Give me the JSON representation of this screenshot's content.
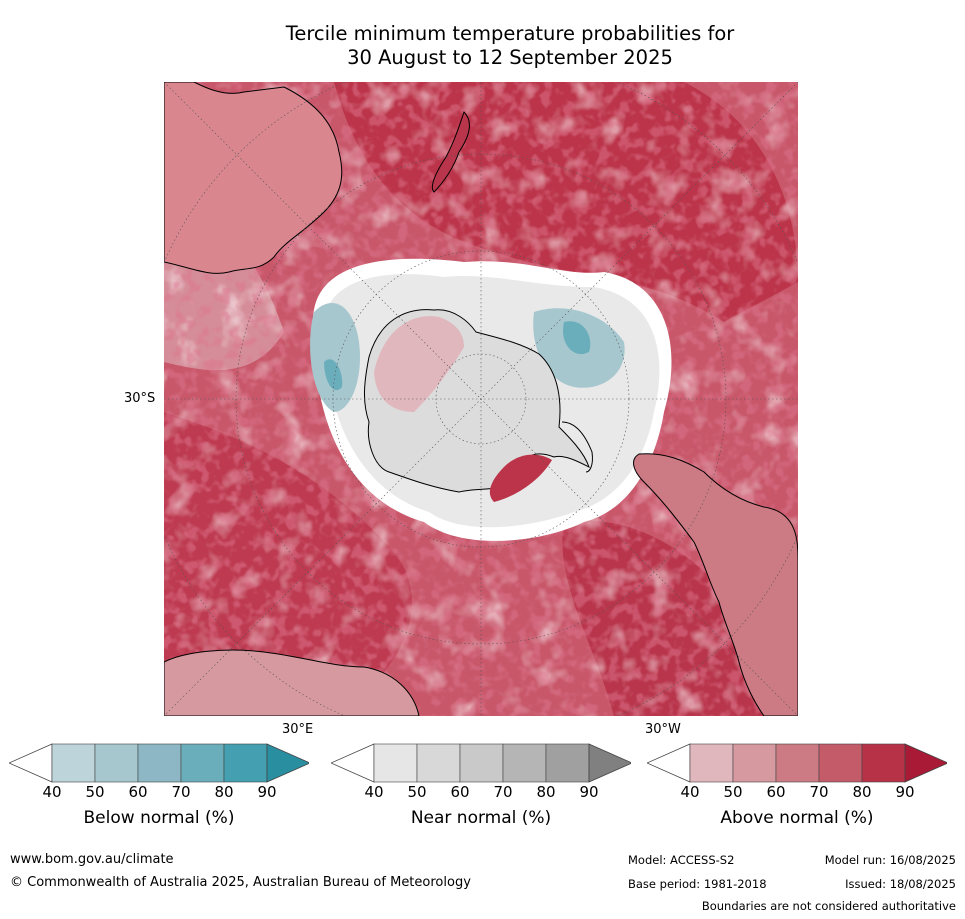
{
  "title_line1": "Tercile minimum temperature probabilities for",
  "title_line2": "30 August to 12 September 2025",
  "map_labels": {
    "lat_30s": "30°S",
    "lon_30e": "30°E",
    "lon_30w": "30°W"
  },
  "legends": [
    {
      "id": "below",
      "title": "Below normal (%)",
      "ticks": [
        "40",
        "50",
        "60",
        "70",
        "80",
        "90"
      ],
      "colors": [
        "#ffffff",
        "#bcd4da",
        "#a7c7cf",
        "#8db7c4",
        "#6baebb",
        "#44a0b1",
        "#2a8ea1"
      ]
    },
    {
      "id": "near",
      "title": "Near normal (%)",
      "ticks": [
        "40",
        "50",
        "60",
        "70",
        "80",
        "90"
      ],
      "colors": [
        "#ffffff",
        "#e6e6e6",
        "#d8d8d8",
        "#c9c9c9",
        "#b5b5b5",
        "#a0a0a0",
        "#808080"
      ]
    },
    {
      "id": "above",
      "title": "Above normal (%)",
      "ticks": [
        "40",
        "50",
        "60",
        "70",
        "80",
        "90"
      ],
      "colors": [
        "#ffffff",
        "#e1b7be",
        "#d6999f",
        "#cc7a83",
        "#c45b69",
        "#b83247",
        "#a81a35"
      ]
    }
  ],
  "footer": {
    "url": "www.bom.gov.au/climate",
    "copyright": "© Commonwealth of Australia 2025, Australian Bureau of Meteorology",
    "model": "Model: ACCESS-S2",
    "base_period": "Base period: 1981-2018",
    "model_run": "Model run: 16/08/2025",
    "issued": "Issued: 18/08/2025",
    "disclaimer": "Boundaries are not considered authoritative"
  }
}
